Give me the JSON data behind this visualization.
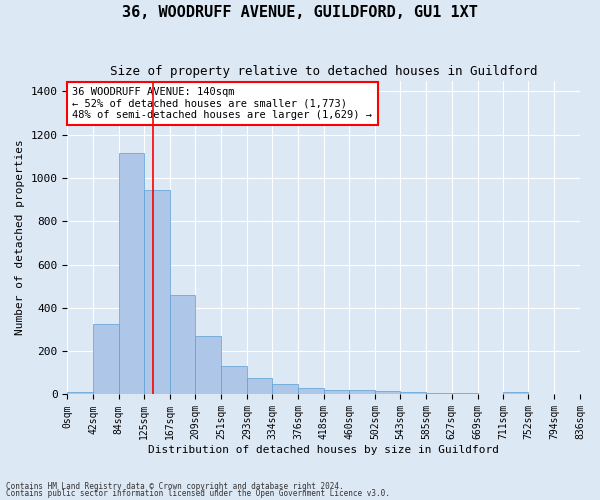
{
  "title": "36, WOODRUFF AVENUE, GUILDFORD, GU1 1XT",
  "subtitle": "Size of property relative to detached houses in Guildford",
  "xlabel": "Distribution of detached houses by size in Guildford",
  "ylabel": "Number of detached properties",
  "footnote1": "Contains HM Land Registry data © Crown copyright and database right 2024.",
  "footnote2": "Contains public sector information licensed under the Open Government Licence v3.0.",
  "bar_edges": [
    0,
    42,
    84,
    125,
    167,
    209,
    251,
    293,
    334,
    376,
    418,
    460,
    502,
    543,
    585,
    627,
    669,
    711,
    752,
    794,
    836
  ],
  "bar_labels": [
    "0sqm",
    "42sqm",
    "84sqm",
    "125sqm",
    "167sqm",
    "209sqm",
    "251sqm",
    "293sqm",
    "334sqm",
    "376sqm",
    "418sqm",
    "460sqm",
    "502sqm",
    "543sqm",
    "585sqm",
    "627sqm",
    "669sqm",
    "711sqm",
    "752sqm",
    "794sqm",
    "836sqm"
  ],
  "bar_values": [
    10,
    325,
    1115,
    945,
    460,
    270,
    130,
    75,
    48,
    30,
    20,
    22,
    18,
    10,
    8,
    5,
    0,
    12,
    0,
    0
  ],
  "bar_color": "#aec6e8",
  "bar_edgecolor": "#5a9fd4",
  "bar_linewidth": 0.5,
  "property_line_x": 140,
  "property_line_color": "red",
  "annotation_line1": "36 WOODRUFF AVENUE: 140sqm",
  "annotation_line2": "← 52% of detached houses are smaller (1,773)",
  "annotation_line3": "48% of semi-detached houses are larger (1,629) →",
  "annotation_box_color": "white",
  "annotation_box_edgecolor": "red",
  "ylim": [
    0,
    1450
  ],
  "yticks": [
    0,
    200,
    400,
    600,
    800,
    1000,
    1200,
    1400
  ],
  "background_color": "#dde8f5",
  "plot_background_color": "#dde8f5",
  "grid_color": "white",
  "title_fontsize": 11,
  "subtitle_fontsize": 9,
  "ylabel_fontsize": 8,
  "xlabel_fontsize": 8,
  "tick_fontsize": 7,
  "annotation_fontsize": 7.5
}
